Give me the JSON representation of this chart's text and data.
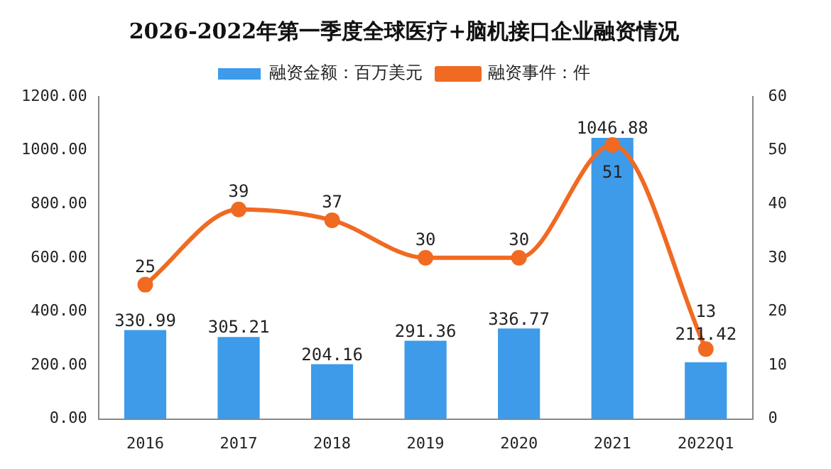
{
  "chart_data": {
    "type": "bar",
    "title": "2026-2022年第一季度全球医疗+脑机接口企业融资情况",
    "categories": [
      "2016",
      "2017",
      "2018",
      "2019",
      "2020",
      "2021",
      "2022Q1"
    ],
    "series": [
      {
        "name": "融资金额：百万美元",
        "color": "#3d9be9",
        "values": [
          330.99,
          305.21,
          204.16,
          291.36,
          336.77,
          1046.88,
          211.42
        ]
      },
      {
        "name": "融资事件：件",
        "type": "line",
        "axis": "y2",
        "color": "#f06a22",
        "marker": "circle",
        "values": [
          25,
          39,
          37,
          30,
          30,
          51,
          13
        ]
      }
    ],
    "ylim": [
      0,
      1200
    ],
    "yticks": [
      {
        "value": 0,
        "label": "0.00"
      },
      {
        "value": 200,
        "label": "200.00"
      },
      {
        "value": 400,
        "label": "400.00"
      },
      {
        "value": 600,
        "label": "600.00"
      },
      {
        "value": 800,
        "label": "800.00"
      },
      {
        "value": 1000,
        "label": "1000.00"
      },
      {
        "value": 1200,
        "label": "1200.00"
      }
    ],
    "y2lim": [
      0,
      60
    ],
    "y2ticks": [
      0,
      10,
      20,
      30,
      40,
      50,
      60
    ],
    "data_labels": true,
    "legend": "top",
    "grid": false
  }
}
